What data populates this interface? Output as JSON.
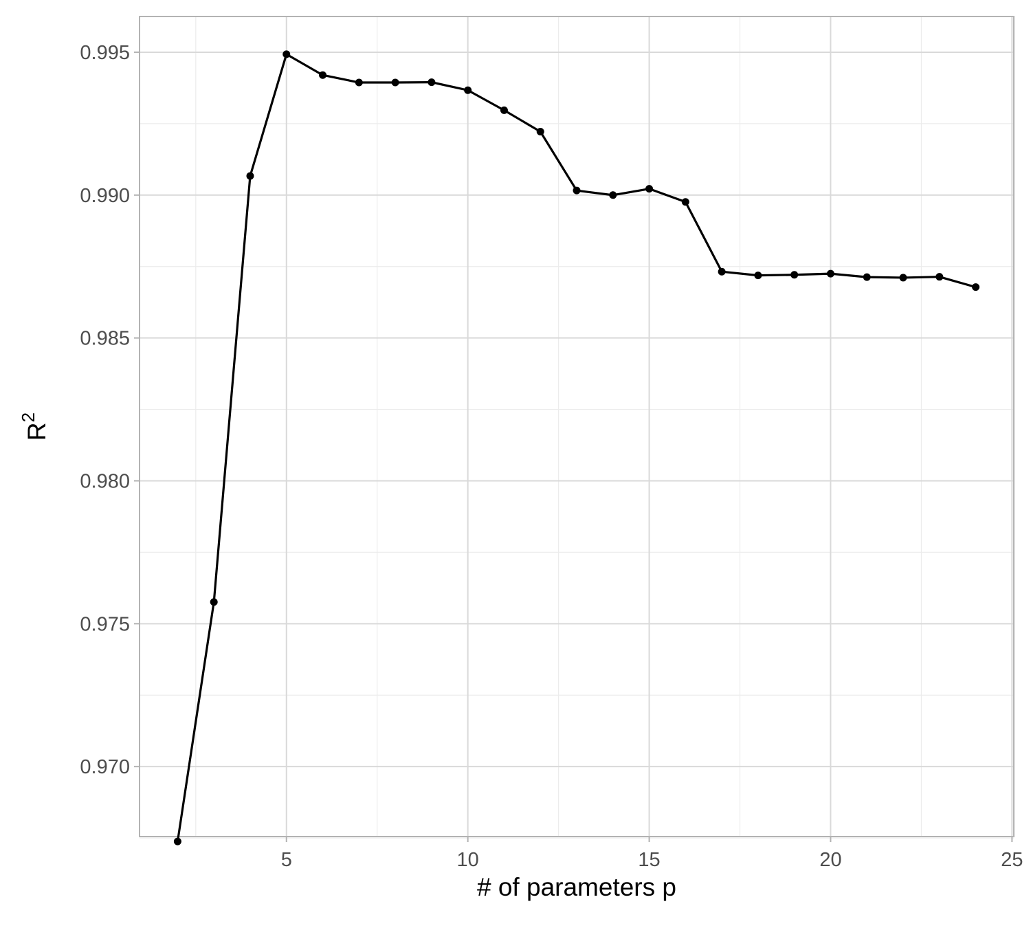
{
  "chart_data": {
    "type": "line",
    "title": "",
    "xlabel": "# of parameters p",
    "ylabel": "R",
    "ylabel_superscript": "2",
    "xlim": [
      0.95,
      25.05
    ],
    "ylim": [
      0.96755,
      0.99625
    ],
    "x_ticks": [
      5,
      10,
      15,
      20,
      25
    ],
    "x_tick_labels": [
      "5",
      "10",
      "15",
      "20",
      "25"
    ],
    "x_minor_ticks": [
      2.5,
      7.5,
      12.5,
      17.5,
      22.5
    ],
    "y_ticks": [
      0.97,
      0.975,
      0.98,
      0.985,
      0.99,
      0.995
    ],
    "y_tick_labels": [
      "0.970",
      "0.975",
      "0.980",
      "0.985",
      "0.990",
      "0.995"
    ],
    "y_minor_ticks": [
      0.9675,
      0.9725,
      0.9775,
      0.9825,
      0.9875,
      0.9925
    ],
    "grid": true,
    "line_color": "#000000",
    "series": [
      {
        "x": [
          2,
          3,
          4,
          5,
          6,
          7,
          8,
          9,
          10,
          11,
          12,
          13,
          14,
          15,
          16,
          17,
          18,
          19,
          20,
          21,
          22,
          23,
          24
        ],
        "values": [
          0.96738,
          0.97576,
          0.99067,
          0.99493,
          0.9942,
          0.99394,
          0.99394,
          0.99395,
          0.99367,
          0.99297,
          0.99222,
          0.99016,
          0.99,
          0.99022,
          0.98976,
          0.98732,
          0.98719,
          0.98721,
          0.98725,
          0.98713,
          0.98711,
          0.98714,
          0.98678
        ]
      }
    ]
  }
}
